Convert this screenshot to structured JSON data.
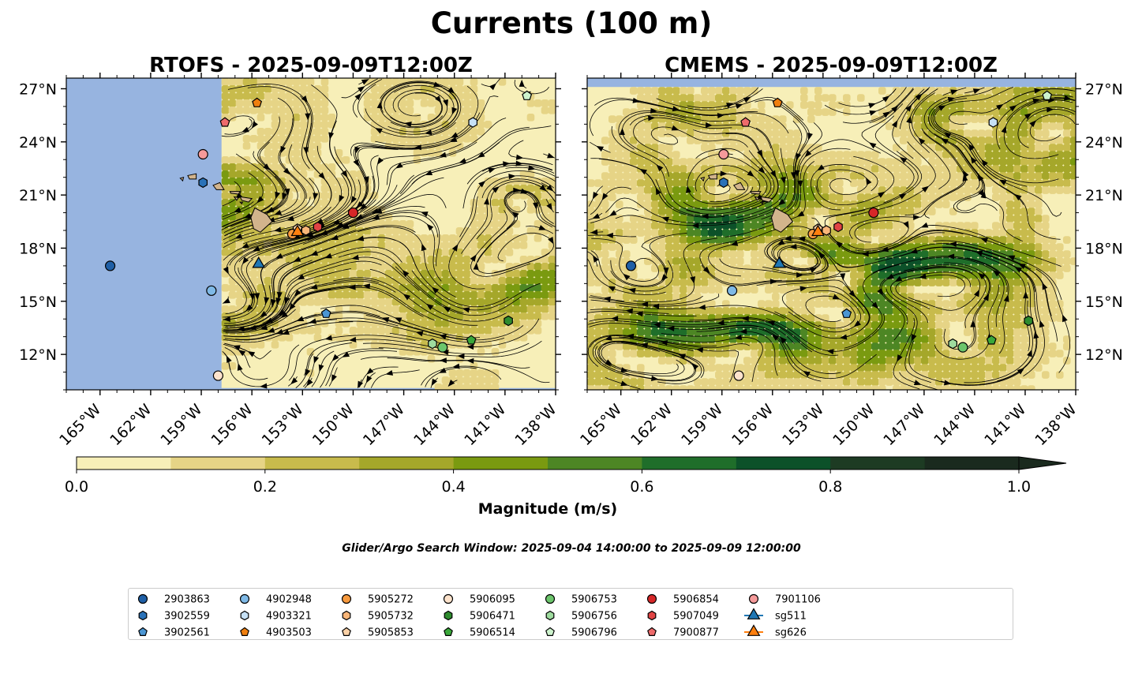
{
  "figure": {
    "title": "Currents (100 m)",
    "subtitle": "Glider/Argo Search Window: 2025-09-04 14:00:00 to 2025-09-09 12:00:00"
  },
  "colors": {
    "land": "#d2b48c",
    "no_data": "#97b4e0",
    "magnitude_levels": [
      "#f7efb8",
      "#e6d486",
      "#c8bb4c",
      "#a5a72a",
      "#7a9a10",
      "#4d8624",
      "#1f6e2a",
      "#0c5129",
      "#1d3b23",
      "#1a2a1e"
    ]
  },
  "chart_data": [
    {
      "type": "heatmap",
      "title": "RTOFS - 2025-09-09T12:00Z",
      "model": "RTOFS",
      "variable": "current magnitude with streamlines",
      "xlim": [
        -167,
        -138
      ],
      "ylim": [
        10,
        27.6
      ],
      "x_ticks": [
        -165,
        -162,
        -159,
        -156,
        -153,
        -150,
        -147,
        -144,
        -141,
        -138
      ],
      "x_tick_labels": [
        "165°W",
        "162°W",
        "159°W",
        "156°W",
        "153°W",
        "150°W",
        "147°W",
        "144°W",
        "141°W",
        "138°W"
      ],
      "y_ticks": [
        12,
        15,
        18,
        21,
        24,
        27
      ],
      "y_tick_labels": [
        "12°N",
        "15°N",
        "18°N",
        "21°N",
        "24°N",
        "27°N"
      ],
      "data_bounds_lon": [
        -157.8,
        -138
      ],
      "data_bounds_lat": [
        10.1,
        27.6
      ],
      "y_axis_side": "left"
    },
    {
      "type": "heatmap",
      "title": "CMEMS - 2025-09-09T12:00Z",
      "model": "CMEMS",
      "variable": "current magnitude with streamlines",
      "xlim": [
        -167,
        -138
      ],
      "ylim": [
        10,
        27.6
      ],
      "x_ticks": [
        -165,
        -162,
        -159,
        -156,
        -153,
        -150,
        -147,
        -144,
        -141,
        -138
      ],
      "x_tick_labels": [
        "165°W",
        "162°W",
        "159°W",
        "156°W",
        "153°W",
        "150°W",
        "147°W",
        "144°W",
        "141°W",
        "138°W"
      ],
      "y_ticks": [
        12,
        15,
        18,
        21,
        24,
        27
      ],
      "y_tick_labels": [
        "12°N",
        "15°N",
        "18°N",
        "21°N",
        "24°N",
        "27°N"
      ],
      "data_bounds_lon": [
        -167,
        -138
      ],
      "data_bounds_lat": [
        10,
        27.1
      ],
      "y_axis_side": "right"
    }
  ],
  "colorbar": {
    "label": "Magnitude (m/s)",
    "min": 0,
    "max": 1,
    "step": 0.1,
    "ticks": [
      0,
      0.2,
      0.4,
      0.6,
      0.8,
      1.0
    ],
    "tick_labels": [
      "0.0",
      "0.2",
      "0.4",
      "0.6",
      "0.8",
      "1.0"
    ],
    "extend": "max"
  },
  "platforms": [
    {
      "id": "2903863",
      "marker": "circle",
      "color": "#1f5fa6",
      "lon": -164.4,
      "lat": 17.0
    },
    {
      "id": "3902559",
      "marker": "hexagon",
      "color": "#2a72b8",
      "lon": -158.9,
      "lat": 21.7
    },
    {
      "id": "3902561",
      "marker": "pentagon",
      "color": "#4b96d3",
      "lon": -151.6,
      "lat": 14.3
    },
    {
      "id": "4902948",
      "marker": "circle",
      "color": "#7fb9e6",
      "lon": -158.4,
      "lat": 15.6
    },
    {
      "id": "4903321",
      "marker": "hexagon",
      "color": "#c6e0f5",
      "lon": -142.9,
      "lat": 25.1
    },
    {
      "id": "4903503",
      "marker": "pentagon",
      "color": "#f07f0e",
      "lon": -155.7,
      "lat": 26.2
    },
    {
      "id": "5905272",
      "marker": "circle",
      "color": "#f79a3e",
      "lon": -153.6,
      "lat": 18.8
    },
    {
      "id": "5905732",
      "marker": "hexagon",
      "color": "#f9b679",
      "lon": -152.8,
      "lat": 19.0
    },
    {
      "id": "5905853",
      "marker": "pentagon",
      "color": "#fbd1a6",
      "lon": -153.3,
      "lat": 19.1
    },
    {
      "id": "5906095",
      "marker": "circle",
      "color": "#fde3cc",
      "lon": -158.0,
      "lat": 10.8
    },
    {
      "id": "5906471",
      "marker": "hexagon",
      "color": "#2e8b2e",
      "lon": -140.8,
      "lat": 13.9
    },
    {
      "id": "5906514",
      "marker": "pentagon",
      "color": "#3aa83a",
      "lon": -143.0,
      "lat": 12.8
    },
    {
      "id": "5906753",
      "marker": "circle",
      "color": "#6cc56c",
      "lon": -144.7,
      "lat": 12.4
    },
    {
      "id": "5906756",
      "marker": "hexagon",
      "color": "#9fdc9f",
      "lon": -145.3,
      "lat": 12.6
    },
    {
      "id": "5906796",
      "marker": "pentagon",
      "color": "#cdf3cd",
      "lon": -139.7,
      "lat": 26.6
    },
    {
      "id": "5906854",
      "marker": "circle",
      "color": "#d62728",
      "lon": -150.0,
      "lat": 20.0
    },
    {
      "id": "5907049",
      "marker": "hexagon",
      "color": "#e04444",
      "lon": -152.1,
      "lat": 19.2
    },
    {
      "id": "7900877",
      "marker": "pentagon",
      "color": "#ee6b6b",
      "lon": -157.6,
      "lat": 25.1
    },
    {
      "id": "7901106",
      "marker": "circle",
      "color": "#f59a9a",
      "lon": -158.9,
      "lat": 23.3
    },
    {
      "id": "sg511",
      "marker": "triangle",
      "color": "#1f77b4",
      "lon": -155.6,
      "lat": 17.1,
      "line": true
    },
    {
      "id": "sg626",
      "marker": "triangle",
      "color": "#ff7f0e",
      "lon": -153.3,
      "lat": 18.9,
      "line": true
    }
  ],
  "islands": [
    {
      "name": "Hawaii",
      "pts": [
        [
          -156.06,
          19.73
        ],
        [
          -155.83,
          20.27
        ],
        [
          -155.1,
          19.9
        ],
        [
          -154.8,
          19.5
        ],
        [
          -155.5,
          18.9
        ],
        [
          -155.9,
          19.1
        ]
      ]
    },
    {
      "name": "Maui",
      "pts": [
        [
          -156.7,
          20.9
        ],
        [
          -156.0,
          20.8
        ],
        [
          -156.2,
          20.6
        ],
        [
          -156.6,
          20.7
        ]
      ]
    },
    {
      "name": "Molokai",
      "pts": [
        [
          -157.3,
          21.2
        ],
        [
          -156.7,
          21.2
        ],
        [
          -156.8,
          21.05
        ],
        [
          -157.25,
          21.1
        ]
      ]
    },
    {
      "name": "Lanai",
      "pts": [
        [
          -157.05,
          20.9
        ],
        [
          -156.8,
          20.85
        ],
        [
          -156.9,
          20.7
        ]
      ]
    },
    {
      "name": "Oahu",
      "pts": [
        [
          -158.3,
          21.55
        ],
        [
          -157.9,
          21.7
        ],
        [
          -157.65,
          21.3
        ],
        [
          -158.1,
          21.3
        ]
      ]
    },
    {
      "name": "Kauai",
      "pts": [
        [
          -159.8,
          22.1
        ],
        [
          -159.3,
          22.2
        ],
        [
          -159.3,
          21.9
        ],
        [
          -159.7,
          21.9
        ]
      ]
    },
    {
      "name": "Niihau",
      "pts": [
        [
          -160.25,
          21.95
        ],
        [
          -160.05,
          22.0
        ],
        [
          -160.1,
          21.8
        ]
      ]
    },
    {
      "name": "Kahoolawe",
      "pts": [
        [
          -156.7,
          20.6
        ],
        [
          -156.55,
          20.6
        ],
        [
          -156.6,
          20.5
        ]
      ]
    }
  ]
}
